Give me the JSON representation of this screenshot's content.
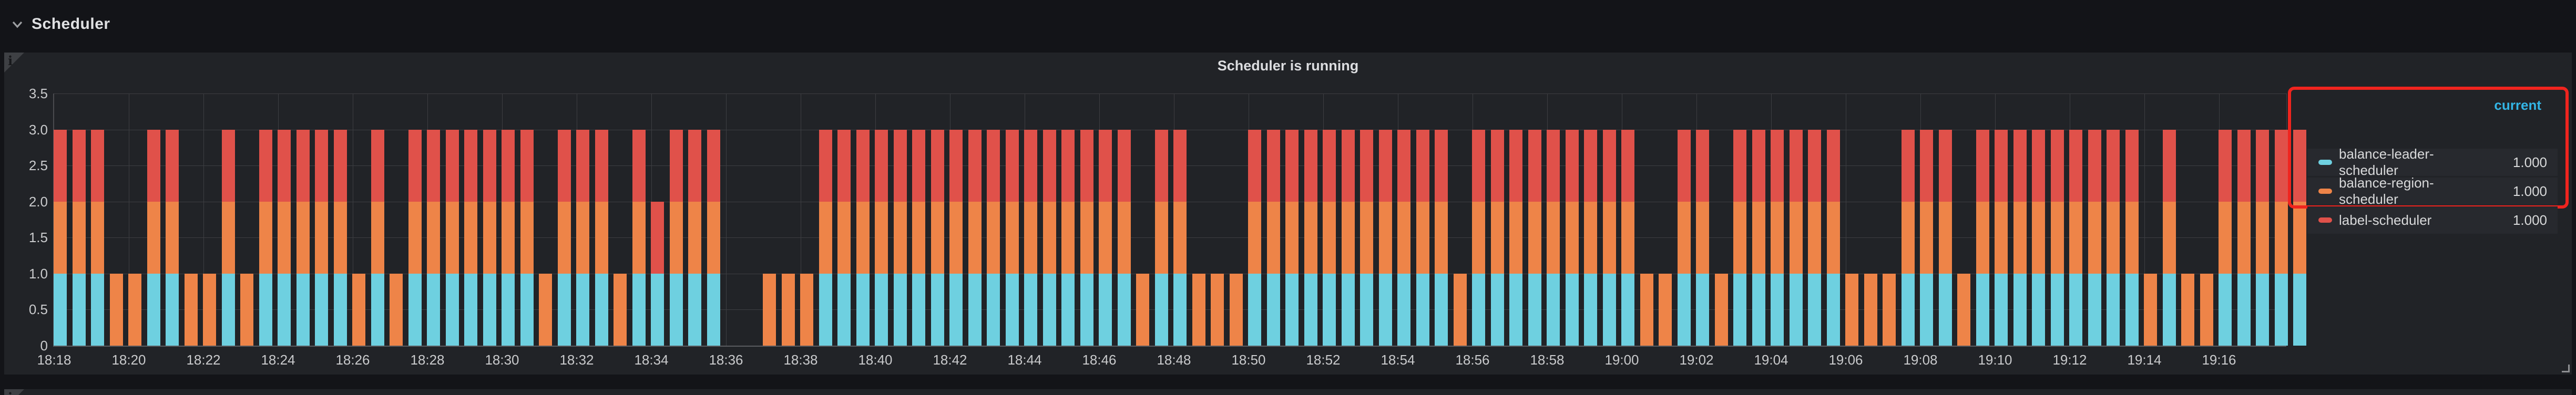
{
  "row_header": {
    "title": "Scheduler",
    "icon": "chevron-down-icon"
  },
  "panel": {
    "title": "Scheduler is running",
    "info_icon_label": "i",
    "background": "#212327"
  },
  "legend": {
    "header": "current",
    "header_color": "#33b5e5",
    "highlight_border_color": "#f0241e",
    "items": [
      {
        "label": "balance-leader-scheduler",
        "current": "1.000",
        "color": "#6ed0e0"
      },
      {
        "label": "balance-region-scheduler",
        "current": "1.000",
        "color": "#ee8448"
      },
      {
        "label": "label-scheduler",
        "current": "1.000",
        "color": "#e0514a"
      }
    ]
  },
  "chart_data": {
    "type": "bar",
    "stacked": true,
    "title": "Scheduler is running",
    "ylim": [
      0,
      3.5
    ],
    "grid": true,
    "legend_position": "right",
    "y_tick_labels": [
      "0",
      "0.5",
      "1.0",
      "1.5",
      "2.0",
      "2.5",
      "3.0",
      "3.5"
    ],
    "y_tick_values": [
      0,
      0.5,
      1.0,
      1.5,
      2.0,
      2.5,
      3.0,
      3.5
    ],
    "x_tick_labels": [
      "18:18",
      "18:20",
      "18:22",
      "18:24",
      "18:26",
      "18:28",
      "18:30",
      "18:32",
      "18:34",
      "18:36",
      "18:38",
      "18:40",
      "18:42",
      "18:44",
      "18:46",
      "18:48",
      "18:50",
      "18:52",
      "18:54",
      "18:56",
      "18:58",
      "19:00",
      "19:02",
      "19:04",
      "19:06",
      "19:08",
      "19:10",
      "19:12",
      "19:14",
      "19:16"
    ],
    "first_bar_time": "18:18:00",
    "bar_interval_seconds": 30,
    "n_bars": 120,
    "series": [
      {
        "name": "balance-leader-scheduler",
        "color": "#6ed0e0",
        "current": 1.0
      },
      {
        "name": "balance-region-scheduler",
        "color": "#ee8448",
        "current": 1.0
      },
      {
        "name": "label-scheduler",
        "color": "#e0514a",
        "current": 1.0
      }
    ],
    "stack_key": {
      "F": [
        1,
        1,
        1
      ],
      "O": [
        0,
        1,
        0
      ],
      "T": [
        1,
        0,
        1
      ],
      "Z": [
        0,
        0,
        0
      ]
    },
    "bars_pattern": "FFFOOFFOOFOFFFFFOFOFFFFFFFOFFFOFTFFFZZOOOFFFFFFFFFFFFFFFFFOFFOOOFFFFFFFFFFFOFFFFFFFFFOOFFOFFFFFFOOOFFFOFFFFFFFFFOFOOFFFFF"
  }
}
